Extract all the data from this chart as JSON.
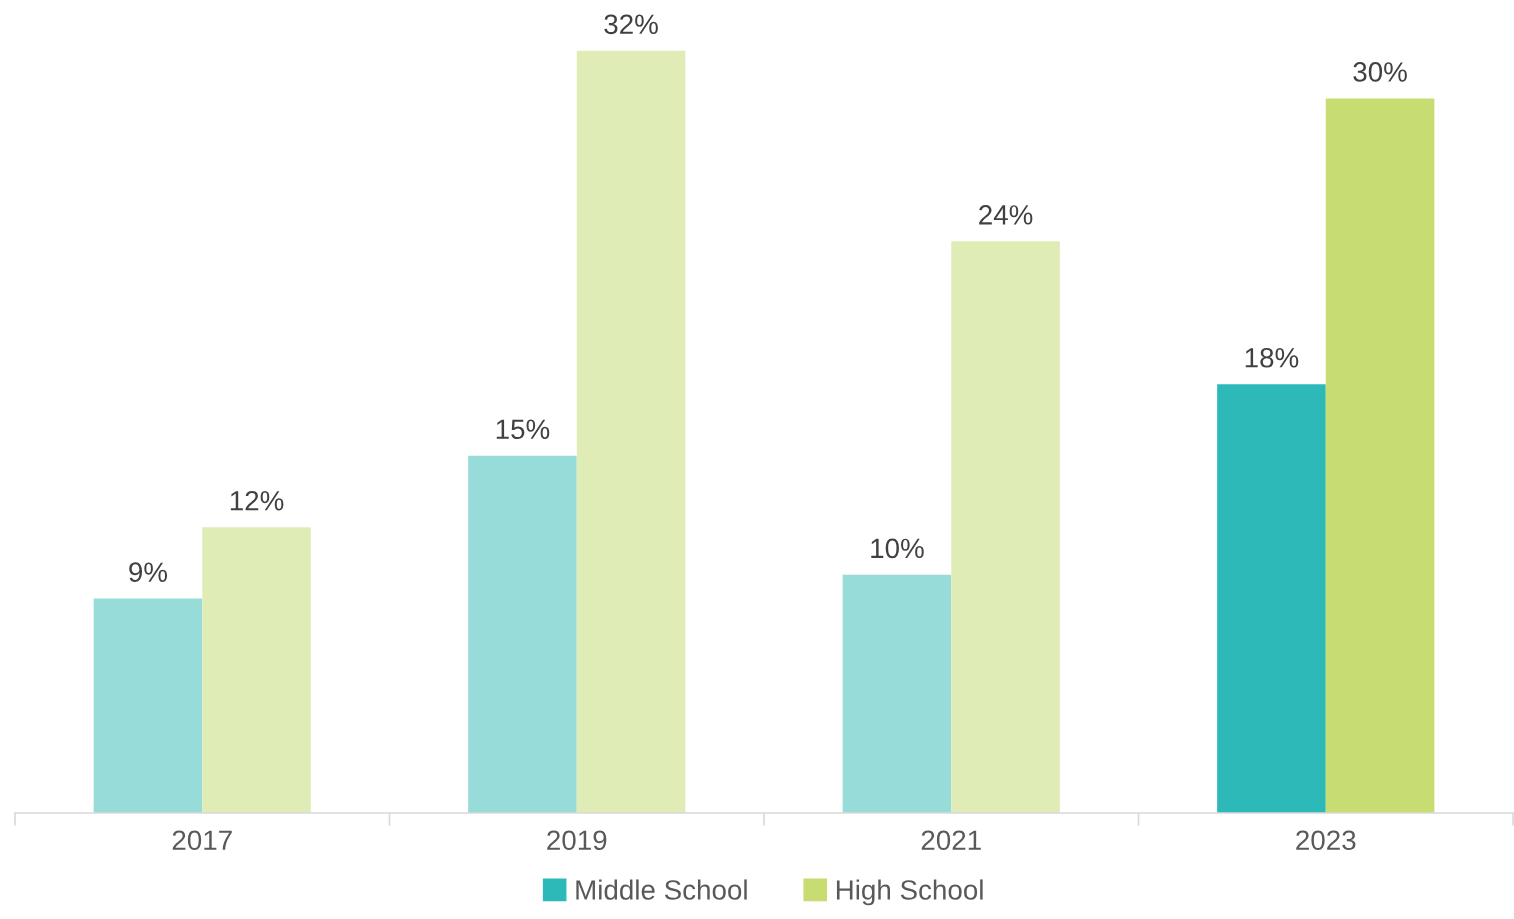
{
  "chart_data": {
    "type": "bar",
    "categories": [
      "2017",
      "2019",
      "2021",
      "2023"
    ],
    "series": [
      {
        "name": "Middle School",
        "color": "#2db9b8",
        "colors": [
          "#98dcd9",
          "#98dcd9",
          "#98dcd9",
          "#2db9b8"
        ],
        "values": [
          9,
          15,
          10,
          18
        ],
        "value_labels": [
          "9%",
          "15%",
          "10%",
          "18%"
        ]
      },
      {
        "name": "High School",
        "color": "#c7dc71",
        "colors": [
          "#e0ecb6",
          "#e0ecb6",
          "#e0ecb6",
          "#c7dc71"
        ],
        "values": [
          12,
          32,
          24,
          30
        ],
        "value_labels": [
          "12%",
          "32%",
          "24%",
          "30%"
        ]
      }
    ],
    "grid": false,
    "legend": "bottom"
  }
}
